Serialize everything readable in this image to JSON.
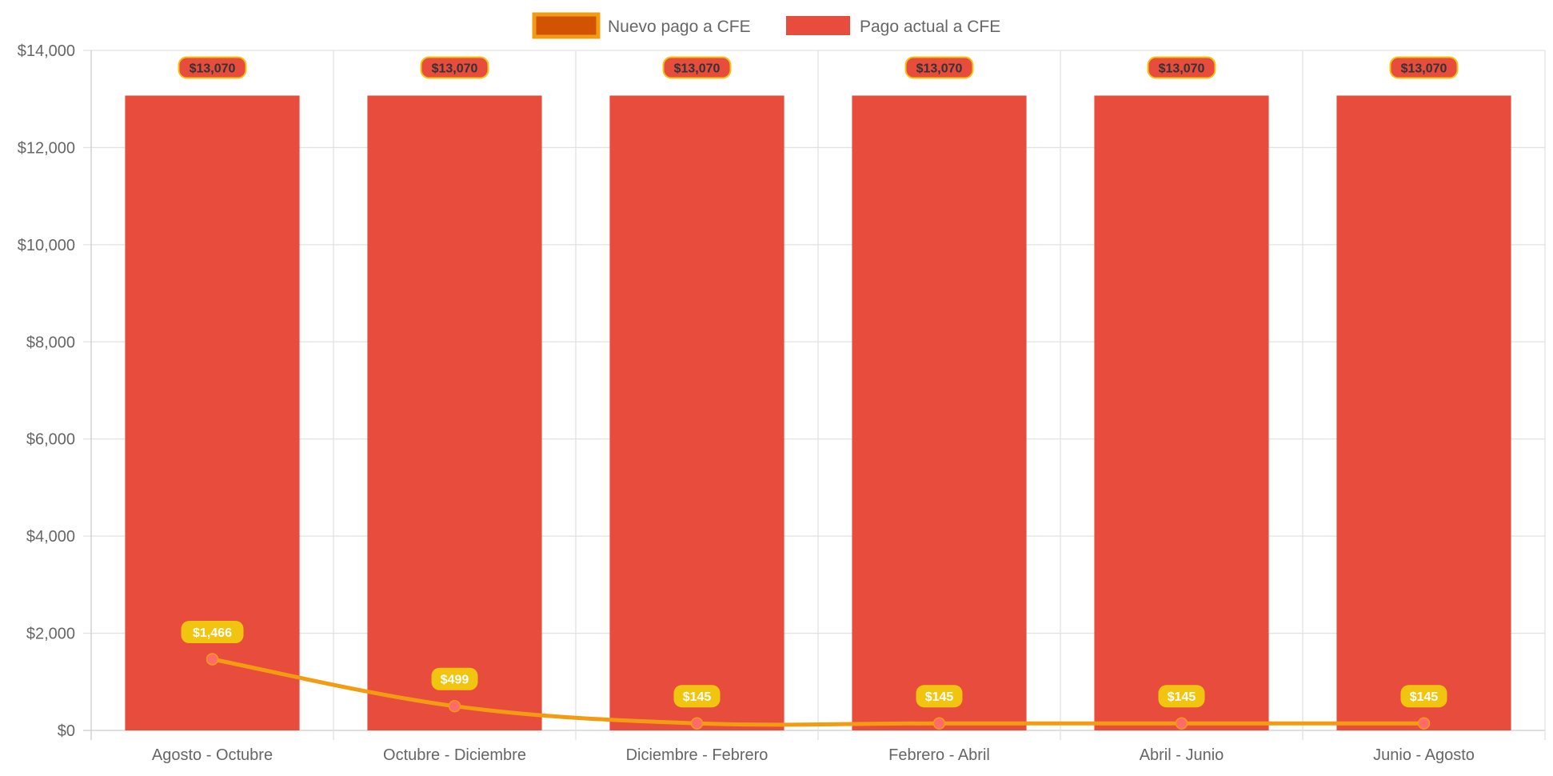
{
  "chart_data": {
    "type": "bar",
    "title": "",
    "xlabel": "",
    "ylabel": "",
    "categories": [
      "Agosto - Octubre",
      "Octubre - Diciembre",
      "Diciembre - Febrero",
      "Febrero - Abril",
      "Abril - Junio",
      "Junio - Agosto"
    ],
    "ylim": [
      0,
      14000
    ],
    "yticks": [
      0,
      2000,
      4000,
      6000,
      8000,
      10000,
      12000,
      14000
    ],
    "ytick_labels": [
      "$0",
      "$2,000",
      "$4,000",
      "$6,000",
      "$8,000",
      "$10,000",
      "$12,000",
      "$14,000"
    ],
    "grid": true,
    "legend_position": "top-center",
    "series": [
      {
        "name": "Nuevo pago a CFE",
        "type": "line",
        "values": [
          1466,
          499,
          145,
          145,
          145,
          145
        ],
        "labels": [
          "$1,466",
          "$499",
          "$145",
          "$145",
          "$145",
          "$145"
        ],
        "color": "#f39c12",
        "legend_fill": "#d35400",
        "point_color": "#ff6b6b",
        "label_bg": "#f1c40f",
        "label_color": "#ffffff"
      },
      {
        "name": "Pago actual a CFE",
        "type": "bar",
        "values": [
          13070,
          13070,
          13070,
          13070,
          13070,
          13070
        ],
        "labels": [
          "$13,070",
          "$13,070",
          "$13,070",
          "$13,070",
          "$13,070",
          "$13,070"
        ],
        "color": "#e74c3c",
        "label_border": "#f1c40f",
        "label_color": "#333333"
      }
    ]
  }
}
